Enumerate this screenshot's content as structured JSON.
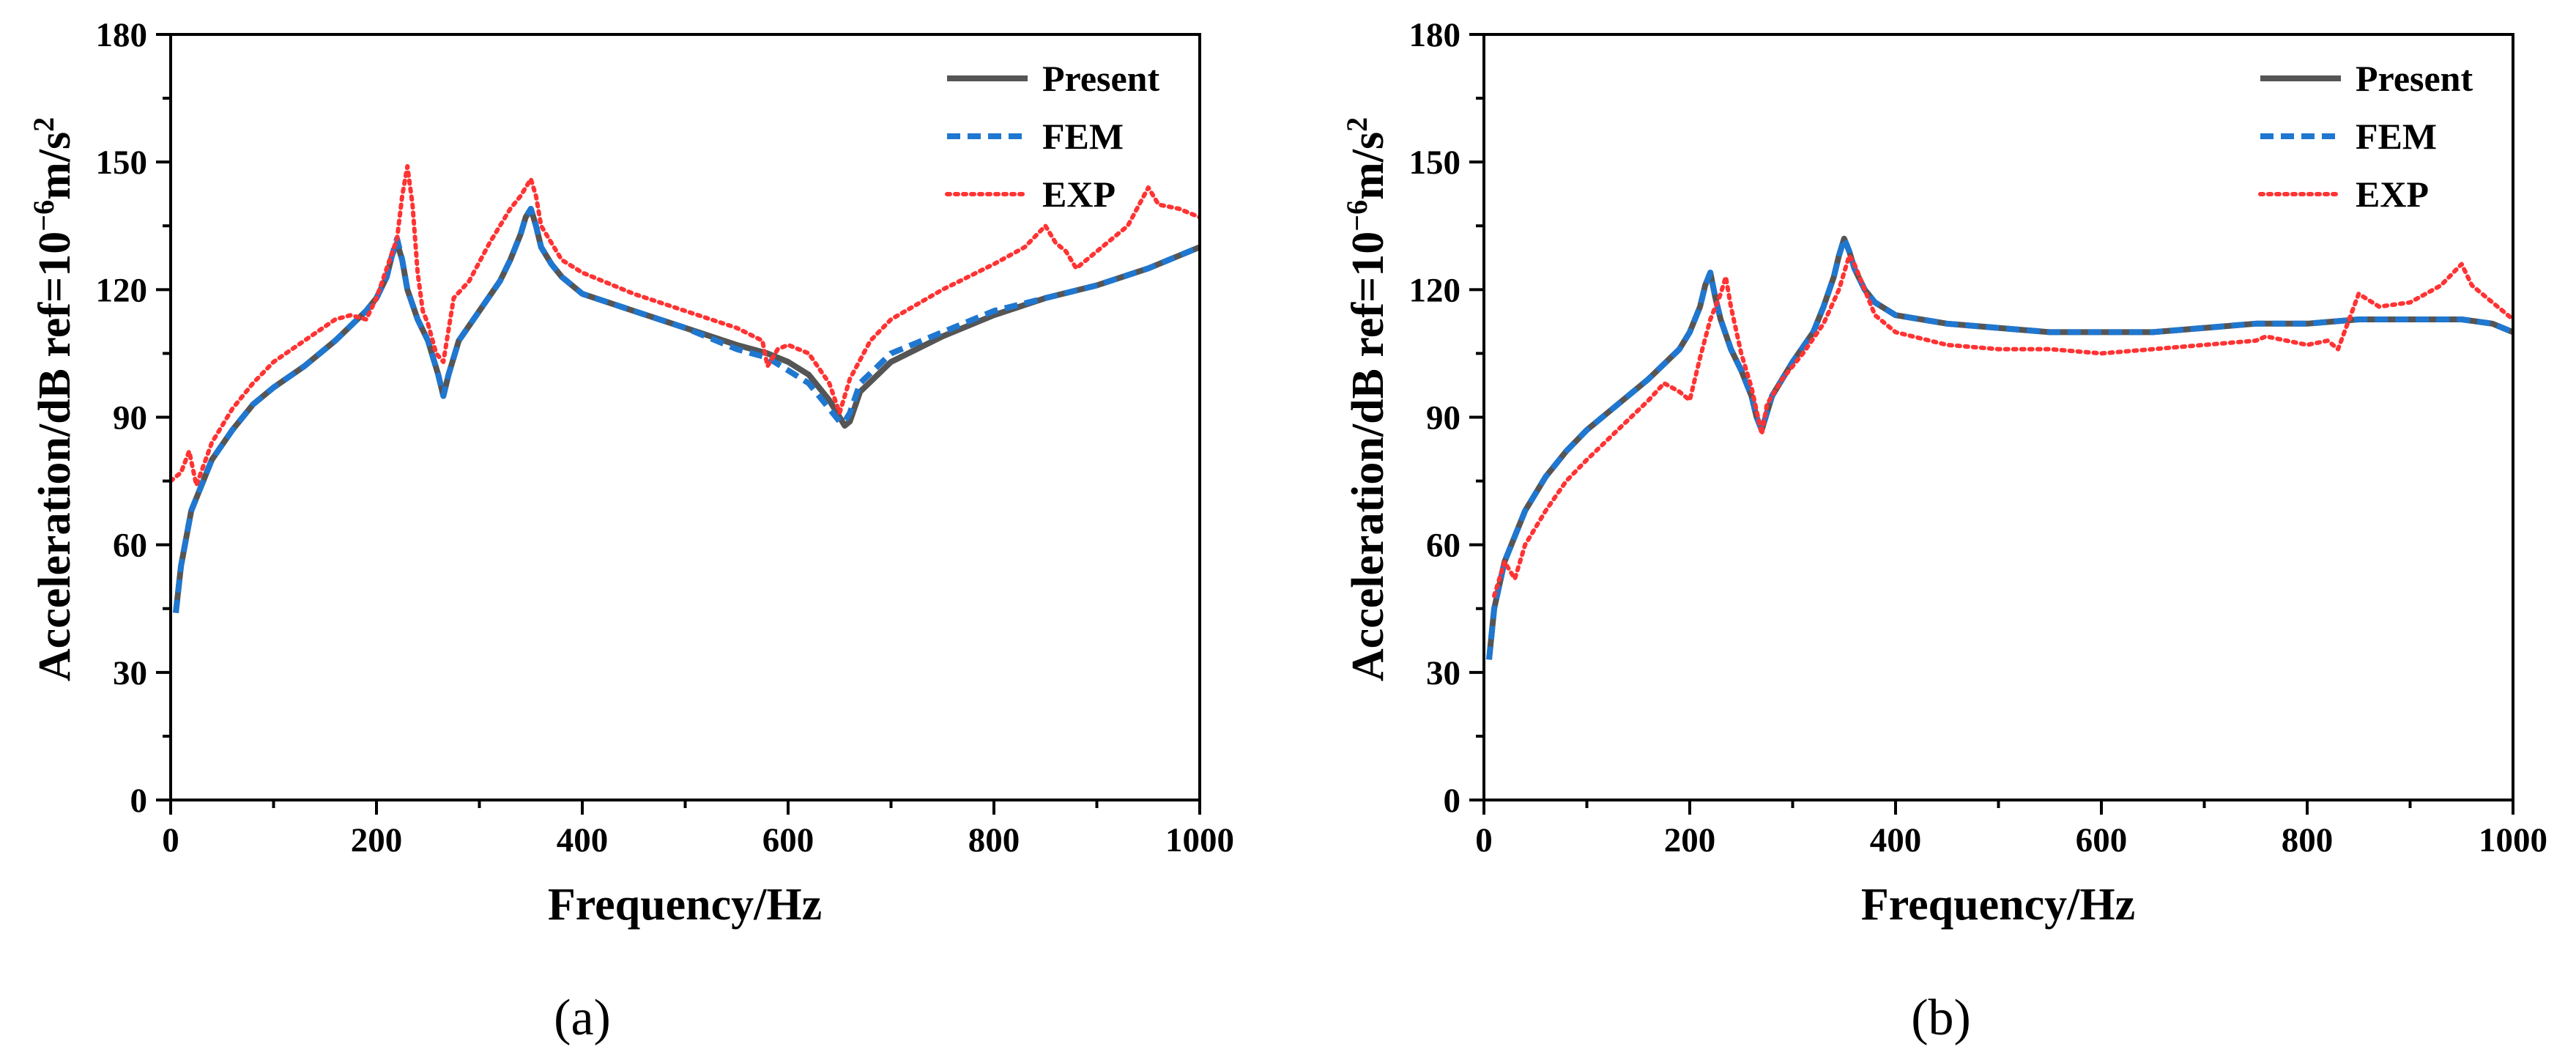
{
  "figure": {
    "captions": [
      "(a)",
      "(b)"
    ]
  },
  "chart_data": [
    {
      "type": "line",
      "panel": "(a)",
      "xlabel": "Frequency/Hz",
      "ylabel": "Acceleration/dB ref=10",
      "ylabel_exp": "−6",
      "ylabel_tail": "m/s",
      "ylabel_sup": "2",
      "xlim": [
        0,
        1000
      ],
      "ylim": [
        0,
        180
      ],
      "xticks": [
        0,
        200,
        400,
        600,
        800,
        1000
      ],
      "yticks": [
        0,
        30,
        60,
        90,
        120,
        150,
        180
      ],
      "legend_position": "top-right",
      "series": [
        {
          "name": "Present",
          "color": "#555555",
          "style": "solid",
          "x": [
            5,
            10,
            20,
            40,
            60,
            80,
            100,
            130,
            160,
            190,
            200,
            210,
            215,
            220,
            225,
            230,
            240,
            250,
            260,
            265,
            270,
            280,
            300,
            320,
            330,
            340,
            345,
            350,
            355,
            360,
            370,
            380,
            400,
            450,
            500,
            550,
            580,
            600,
            620,
            630,
            640,
            650,
            655,
            660,
            670,
            700,
            750,
            800,
            850,
            900,
            950,
            1000
          ],
          "y": [
            44,
            55,
            68,
            80,
            87,
            93,
            97,
            102,
            108,
            115,
            118,
            123,
            128,
            131,
            127,
            120,
            113,
            108,
            100,
            95,
            100,
            108,
            115,
            122,
            127,
            133,
            137,
            139,
            135,
            130,
            126,
            123,
            119,
            115,
            111,
            107,
            105,
            103,
            100,
            97,
            94,
            90,
            88,
            89,
            96,
            103,
            109,
            114,
            118,
            121,
            125,
            130
          ]
        },
        {
          "name": "FEM",
          "color": "#1f77d0",
          "style": "dashed",
          "x": [
            5,
            10,
            20,
            40,
            60,
            80,
            100,
            130,
            160,
            190,
            200,
            210,
            215,
            220,
            225,
            230,
            240,
            250,
            260,
            265,
            270,
            280,
            300,
            320,
            330,
            340,
            345,
            350,
            355,
            360,
            370,
            380,
            400,
            450,
            500,
            550,
            580,
            600,
            620,
            630,
            640,
            650,
            655,
            660,
            670,
            700,
            750,
            800,
            850,
            900,
            950,
            1000
          ],
          "y": [
            44,
            55,
            68,
            80,
            87,
            93,
            97,
            102,
            108,
            115,
            118,
            123,
            128,
            132,
            127,
            120,
            113,
            108,
            100,
            95,
            100,
            108,
            115,
            122,
            127,
            133,
            137,
            139,
            135,
            130,
            126,
            123,
            119,
            115,
            111,
            106,
            104,
            101,
            98,
            95,
            92,
            89,
            89,
            91,
            98,
            105,
            110,
            115,
            118,
            121,
            125,
            130
          ]
        },
        {
          "name": "EXP",
          "color": "#ff3333",
          "style": "dotted",
          "x": [
            0,
            10,
            18,
            25,
            40,
            60,
            80,
            100,
            130,
            160,
            175,
            190,
            200,
            210,
            220,
            225,
            230,
            235,
            240,
            245,
            250,
            258,
            265,
            275,
            290,
            310,
            330,
            340,
            350,
            355,
            360,
            380,
            400,
            450,
            500,
            550,
            575,
            580,
            590,
            600,
            620,
            640,
            650,
            660,
            680,
            700,
            750,
            800,
            830,
            850,
            860,
            870,
            880,
            900,
            930,
            950,
            960,
            980,
            1000
          ],
          "y": [
            75,
            77,
            82,
            74,
            84,
            92,
            98,
            103,
            108,
            113,
            114,
            113,
            118,
            125,
            132,
            142,
            149,
            140,
            124,
            115,
            112,
            105,
            103,
            118,
            122,
            131,
            139,
            142,
            146,
            142,
            135,
            127,
            124,
            119,
            115,
            111,
            108,
            102,
            106,
            107,
            105,
            98,
            91,
            99,
            108,
            113,
            120,
            126,
            130,
            135,
            131,
            129,
            125,
            129,
            135,
            144,
            140,
            139,
            137
          ]
        }
      ]
    },
    {
      "type": "line",
      "panel": "(b)",
      "xlabel": "Frequency/Hz",
      "ylabel": "Acceleration/dB ref=10",
      "ylabel_exp": "−6",
      "ylabel_tail": "m/s",
      "ylabel_sup": "2",
      "xlim": [
        0,
        1000
      ],
      "ylim": [
        0,
        180
      ],
      "xticks": [
        0,
        200,
        400,
        600,
        800,
        1000
      ],
      "yticks": [
        0,
        30,
        60,
        90,
        120,
        150,
        180
      ],
      "legend_position": "top-right",
      "series": [
        {
          "name": "Present",
          "color": "#555555",
          "style": "solid",
          "x": [
            5,
            10,
            20,
            40,
            60,
            80,
            100,
            130,
            160,
            190,
            200,
            210,
            215,
            220,
            225,
            230,
            240,
            250,
            260,
            265,
            270,
            280,
            300,
            320,
            330,
            340,
            345,
            350,
            355,
            360,
            370,
            380,
            400,
            450,
            500,
            550,
            600,
            650,
            700,
            750,
            800,
            850,
            900,
            950,
            980,
            1000
          ],
          "y": [
            33,
            45,
            56,
            68,
            76,
            82,
            87,
            93,
            99,
            106,
            110,
            116,
            121,
            124,
            118,
            113,
            106,
            101,
            95,
            90,
            87,
            95,
            103,
            110,
            116,
            123,
            128,
            132,
            129,
            125,
            120,
            117,
            114,
            112,
            111,
            110,
            110,
            110,
            111,
            112,
            112,
            113,
            113,
            113,
            112,
            110
          ]
        },
        {
          "name": "FEM",
          "color": "#1f77d0",
          "style": "dashed",
          "x": [
            5,
            10,
            20,
            40,
            60,
            80,
            100,
            130,
            160,
            190,
            200,
            210,
            215,
            220,
            225,
            230,
            240,
            250,
            260,
            265,
            270,
            280,
            300,
            320,
            330,
            340,
            345,
            350,
            355,
            360,
            370,
            380,
            400,
            450,
            500,
            550,
            600,
            650,
            700,
            750,
            800,
            850,
            900,
            950,
            980,
            1000
          ],
          "y": [
            33,
            45,
            56,
            68,
            76,
            82,
            87,
            93,
            99,
            106,
            110,
            116,
            121,
            124,
            118,
            113,
            106,
            101,
            95,
            90,
            87,
            95,
            103,
            110,
            116,
            123,
            128,
            132,
            129,
            125,
            120,
            117,
            114,
            112,
            111,
            110,
            110,
            110,
            111,
            112,
            112,
            113,
            113,
            113,
            112,
            110
          ]
        },
        {
          "name": "EXP",
          "color": "#ff3333",
          "style": "dotted",
          "x": [
            10,
            20,
            30,
            40,
            60,
            80,
            100,
            130,
            160,
            175,
            190,
            200,
            210,
            220,
            230,
            235,
            240,
            250,
            260,
            270,
            275,
            290,
            310,
            330,
            345,
            355,
            360,
            380,
            400,
            450,
            500,
            550,
            600,
            650,
            700,
            750,
            760,
            780,
            800,
            820,
            830,
            850,
            870,
            900,
            930,
            950,
            960,
            980,
            1000
          ],
          "y": [
            48,
            56,
            52,
            60,
            68,
            75,
            80,
            87,
            94,
            98,
            96,
            94,
            104,
            113,
            119,
            123,
            116,
            105,
            97,
            86,
            93,
            99,
            105,
            112,
            120,
            128,
            126,
            114,
            110,
            107,
            106,
            106,
            105,
            106,
            107,
            108,
            109,
            108,
            107,
            108,
            106,
            119,
            116,
            117,
            121,
            126,
            121,
            117,
            113
          ]
        }
      ]
    }
  ]
}
